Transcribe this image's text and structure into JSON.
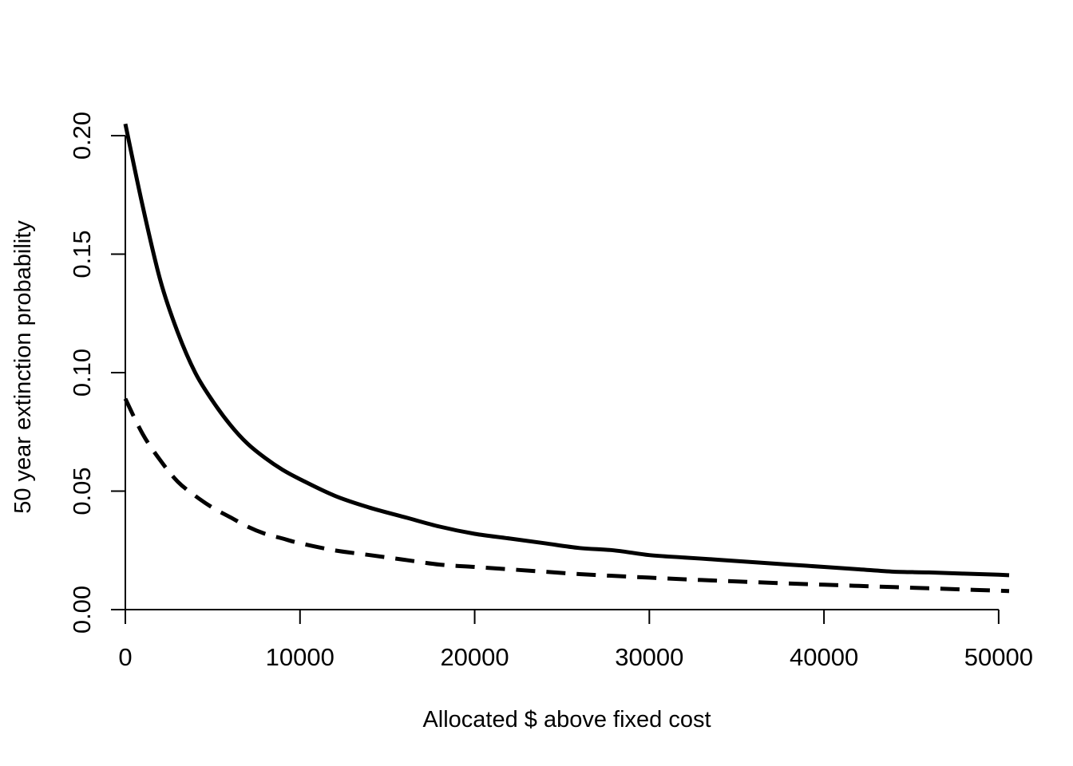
{
  "chart_data": {
    "type": "line",
    "title": "",
    "xlabel": "Allocated $ above fixed cost",
    "ylabel": "50 year extinction probability",
    "xlim": [
      0,
      50600
    ],
    "ylim": [
      0,
      0.205
    ],
    "x_ticks": [
      "0",
      "10000",
      "20000",
      "30000",
      "40000",
      "50000"
    ],
    "y_ticks": [
      "0.00",
      "0.05",
      "0.10",
      "0.15",
      "0.20"
    ],
    "grid": false,
    "legend": "none",
    "x": [
      0,
      1000,
      2000,
      3000,
      4000,
      5000,
      6000,
      7000,
      8000,
      9000,
      10000,
      12000,
      14000,
      16000,
      18000,
      20000,
      22000,
      24000,
      26000,
      28000,
      30000,
      32000,
      34000,
      36000,
      38000,
      40000,
      42000,
      44000,
      46000,
      48000,
      50000,
      50600
    ],
    "series": [
      {
        "style": "solid",
        "color": "#000000",
        "values": [
          0.205,
          0.17,
          0.139,
          0.117,
          0.1,
          0.088,
          0.078,
          0.07,
          0.064,
          0.059,
          0.055,
          0.048,
          0.043,
          0.039,
          0.035,
          0.032,
          0.03,
          0.028,
          0.026,
          0.025,
          0.023,
          0.022,
          0.021,
          0.02,
          0.019,
          0.018,
          0.017,
          0.016,
          0.0157,
          0.0152,
          0.0147,
          0.0145
        ]
      },
      {
        "style": "dashed",
        "color": "#000000",
        "values": [
          0.089,
          0.074,
          0.063,
          0.054,
          0.048,
          0.043,
          0.039,
          0.035,
          0.032,
          0.03,
          0.028,
          0.025,
          0.023,
          0.021,
          0.019,
          0.018,
          0.017,
          0.016,
          0.015,
          0.0142,
          0.0135,
          0.0128,
          0.0122,
          0.0116,
          0.011,
          0.0105,
          0.01,
          0.0095,
          0.009,
          0.0085,
          0.008,
          0.0078
        ]
      }
    ]
  }
}
